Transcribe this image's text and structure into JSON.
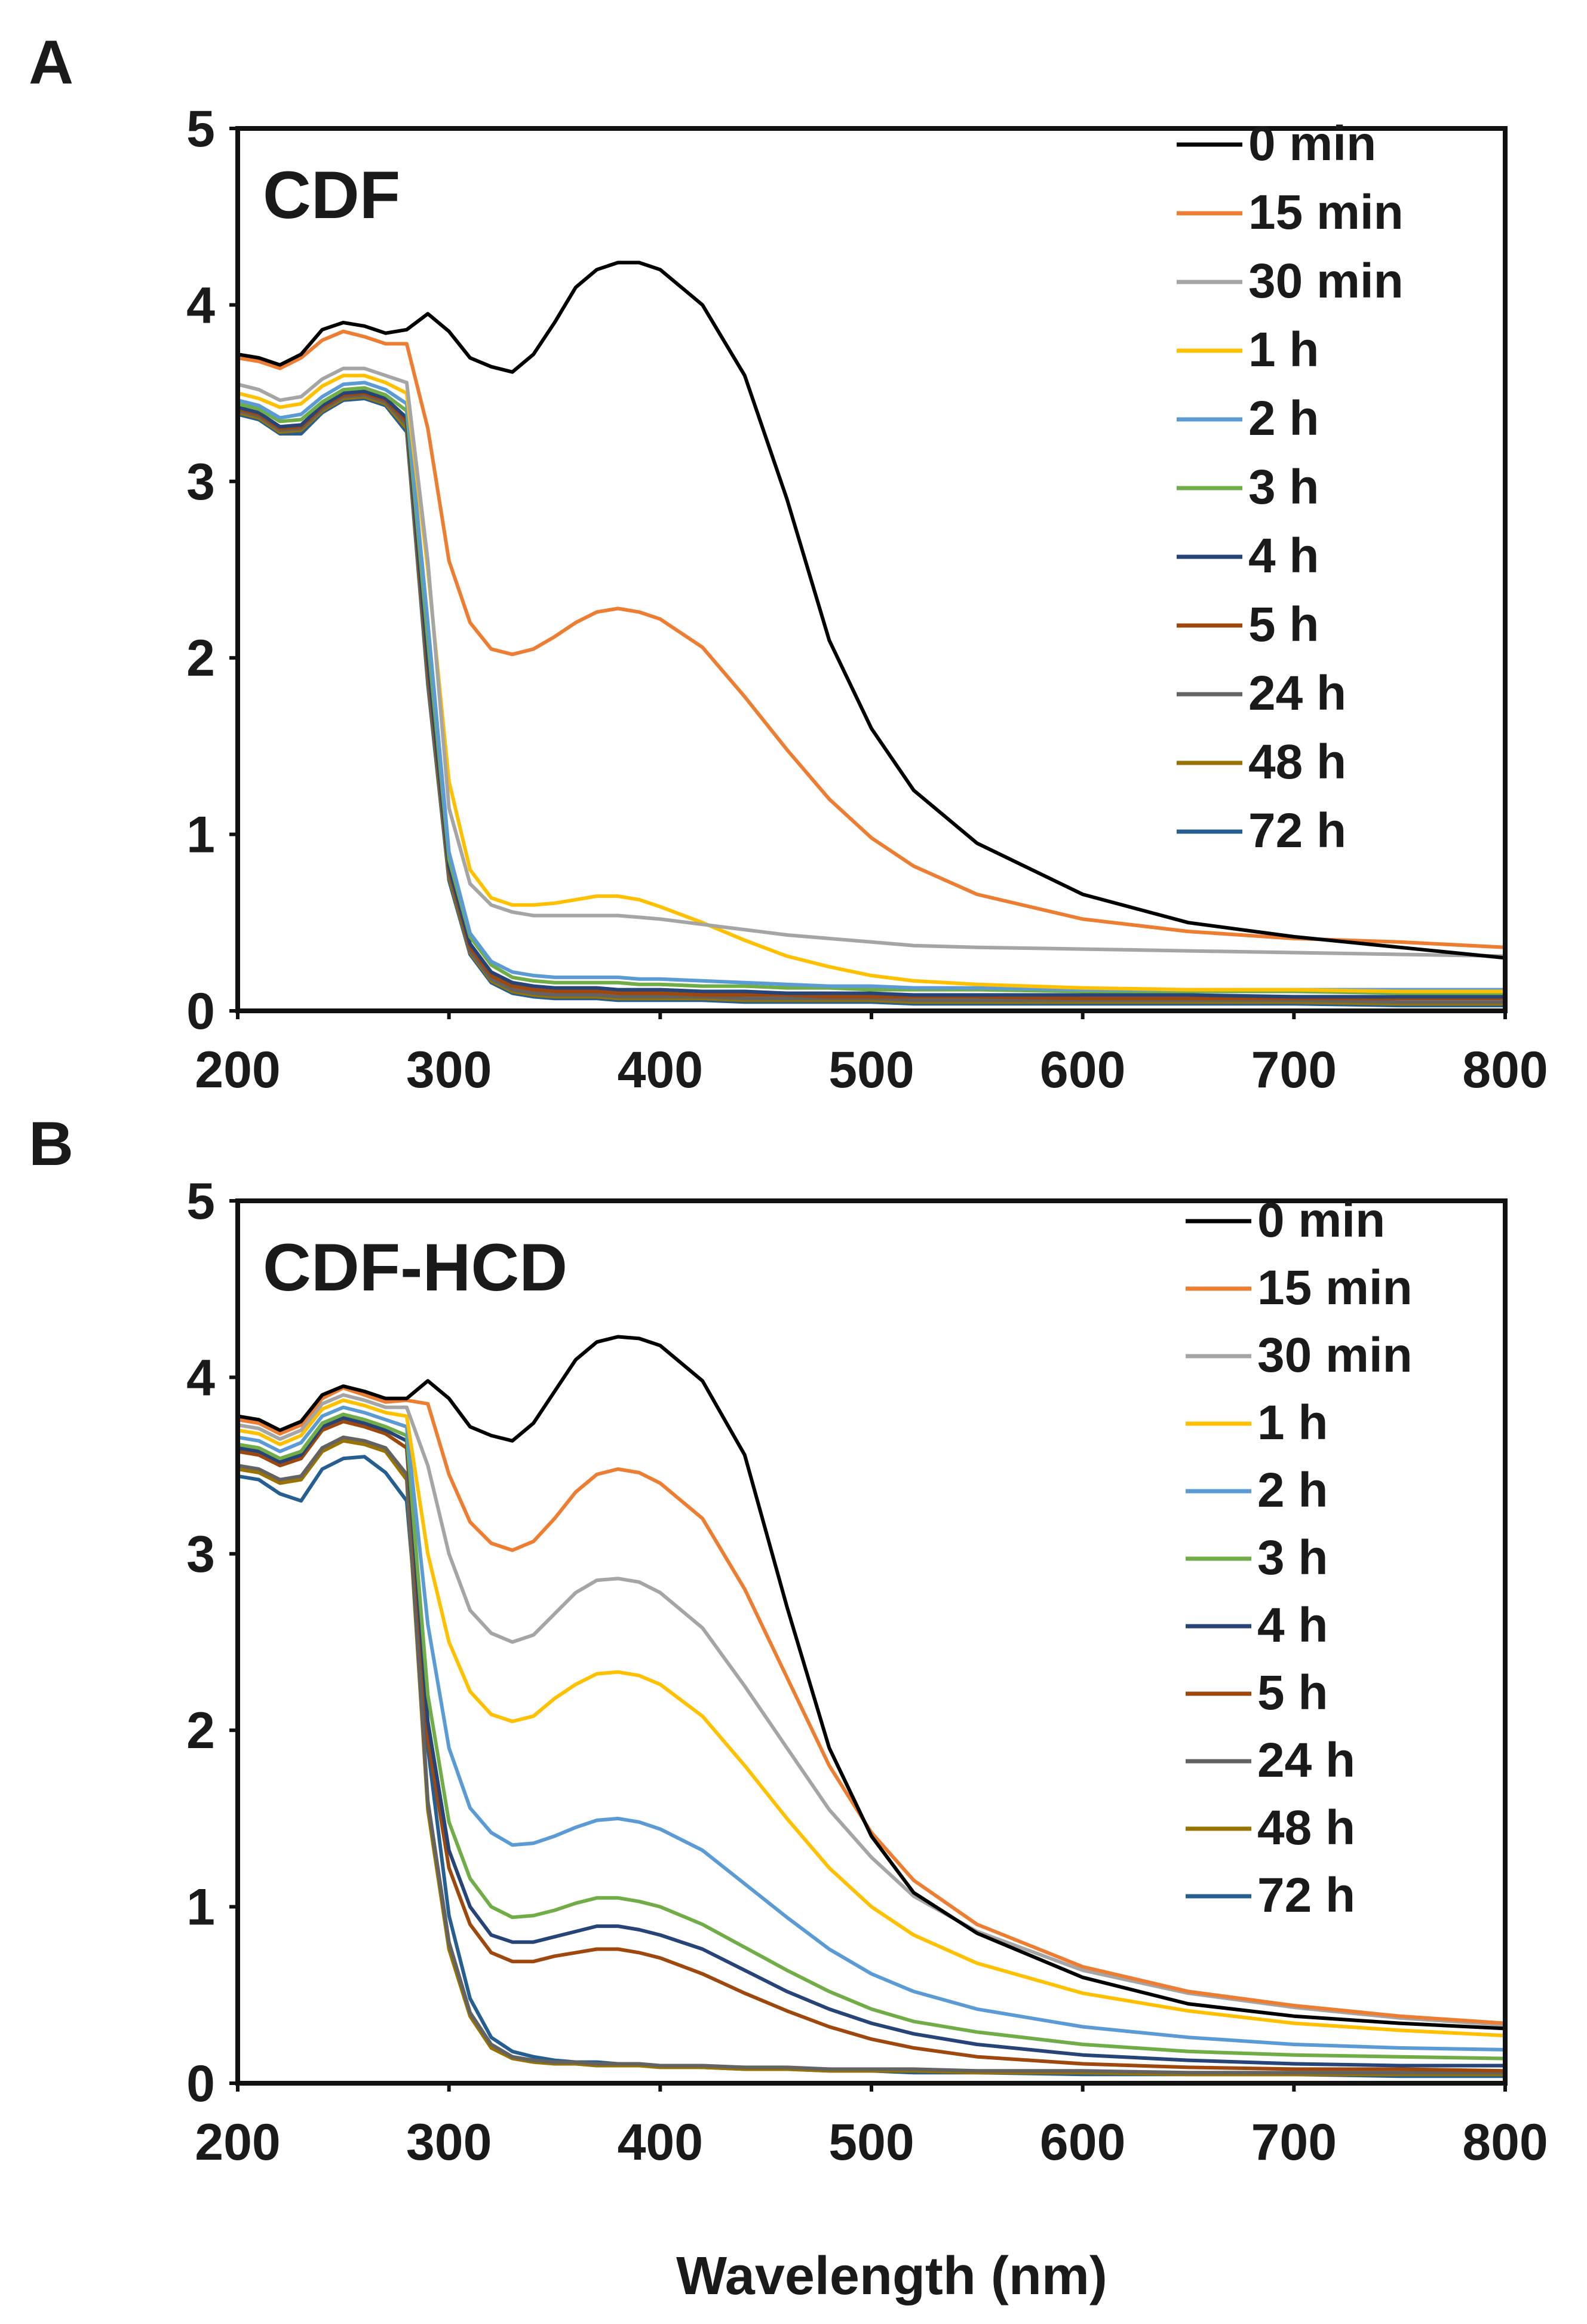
{
  "xlabel": "Wavelength (nm)",
  "chart_data": [
    {
      "type": "line",
      "panel": "A",
      "title": "CDF",
      "xlabel": "",
      "ylabel": "",
      "xlim": [
        200,
        800
      ],
      "ylim": [
        0,
        5
      ],
      "xticks": [
        "200",
        "300",
        "400",
        "500",
        "600",
        "700",
        "800"
      ],
      "yticks": [
        "0",
        "1",
        "2",
        "3",
        "4",
        "5"
      ],
      "x": [
        200,
        210,
        220,
        230,
        240,
        250,
        260,
        270,
        280,
        290,
        300,
        310,
        320,
        330,
        340,
        350,
        360,
        370,
        380,
        390,
        400,
        420,
        440,
        460,
        480,
        500,
        520,
        550,
        600,
        650,
        700,
        750,
        800
      ],
      "series": [
        {
          "name": "0 min",
          "color": "#000000",
          "values": [
            3.72,
            3.7,
            3.66,
            3.72,
            3.86,
            3.9,
            3.88,
            3.84,
            3.86,
            3.95,
            3.85,
            3.7,
            3.65,
            3.62,
            3.72,
            3.9,
            4.1,
            4.2,
            4.24,
            4.24,
            4.2,
            4.0,
            3.6,
            2.9,
            2.1,
            1.6,
            1.25,
            0.95,
            0.66,
            0.5,
            0.42,
            0.36,
            0.3
          ]
        },
        {
          "name": "15 min",
          "color": "#ED7D31",
          "values": [
            3.7,
            3.68,
            3.64,
            3.7,
            3.8,
            3.85,
            3.82,
            3.78,
            3.78,
            3.3,
            2.55,
            2.2,
            2.05,
            2.02,
            2.05,
            2.12,
            2.2,
            2.26,
            2.28,
            2.26,
            2.22,
            2.06,
            1.78,
            1.48,
            1.2,
            0.98,
            0.82,
            0.66,
            0.52,
            0.45,
            0.41,
            0.39,
            0.36
          ]
        },
        {
          "name": "30 min",
          "color": "#A5A5A5",
          "values": [
            3.55,
            3.52,
            3.46,
            3.48,
            3.58,
            3.64,
            3.64,
            3.6,
            3.56,
            2.55,
            1.15,
            0.72,
            0.6,
            0.56,
            0.54,
            0.54,
            0.54,
            0.54,
            0.54,
            0.53,
            0.52,
            0.49,
            0.46,
            0.43,
            0.41,
            0.39,
            0.37,
            0.36,
            0.35,
            0.34,
            0.33,
            0.32,
            0.31
          ]
        },
        {
          "name": "1 h",
          "color": "#FFC000",
          "values": [
            3.5,
            3.47,
            3.42,
            3.44,
            3.54,
            3.6,
            3.6,
            3.56,
            3.5,
            2.5,
            1.3,
            0.8,
            0.64,
            0.6,
            0.6,
            0.61,
            0.63,
            0.65,
            0.65,
            0.63,
            0.59,
            0.5,
            0.4,
            0.31,
            0.25,
            0.2,
            0.17,
            0.15,
            0.13,
            0.12,
            0.12,
            0.11,
            0.11
          ]
        },
        {
          "name": "2 h",
          "color": "#5B9BD5",
          "values": [
            3.46,
            3.43,
            3.36,
            3.38,
            3.48,
            3.55,
            3.56,
            3.52,
            3.44,
            2.2,
            0.9,
            0.44,
            0.28,
            0.22,
            0.2,
            0.19,
            0.19,
            0.19,
            0.19,
            0.18,
            0.18,
            0.17,
            0.16,
            0.15,
            0.14,
            0.14,
            0.13,
            0.13,
            0.12,
            0.12,
            0.12,
            0.12,
            0.12
          ]
        },
        {
          "name": "3 h",
          "color": "#70AD47",
          "values": [
            3.44,
            3.41,
            3.34,
            3.35,
            3.45,
            3.52,
            3.53,
            3.49,
            3.4,
            2.1,
            0.86,
            0.42,
            0.26,
            0.19,
            0.17,
            0.16,
            0.16,
            0.16,
            0.16,
            0.15,
            0.15,
            0.14,
            0.14,
            0.13,
            0.13,
            0.12,
            0.12,
            0.12,
            0.11,
            0.11,
            0.11,
            0.1,
            0.1
          ]
        },
        {
          "name": "4 h",
          "color": "#264478",
          "values": [
            3.42,
            3.39,
            3.31,
            3.32,
            3.43,
            3.5,
            3.51,
            3.47,
            3.36,
            2.0,
            0.82,
            0.38,
            0.22,
            0.16,
            0.14,
            0.13,
            0.13,
            0.13,
            0.12,
            0.12,
            0.12,
            0.11,
            0.11,
            0.1,
            0.1,
            0.1,
            0.09,
            0.09,
            0.09,
            0.09,
            0.08,
            0.08,
            0.08
          ]
        },
        {
          "name": "5 h",
          "color": "#9E480E",
          "values": [
            3.41,
            3.38,
            3.3,
            3.31,
            3.42,
            3.49,
            3.5,
            3.46,
            3.34,
            1.95,
            0.8,
            0.36,
            0.2,
            0.14,
            0.12,
            0.11,
            0.11,
            0.11,
            0.1,
            0.1,
            0.1,
            0.09,
            0.09,
            0.09,
            0.08,
            0.08,
            0.08,
            0.08,
            0.07,
            0.07,
            0.07,
            0.07,
            0.07
          ]
        },
        {
          "name": "24 h",
          "color": "#636363",
          "values": [
            3.4,
            3.37,
            3.29,
            3.3,
            3.41,
            3.48,
            3.49,
            3.45,
            3.32,
            1.9,
            0.78,
            0.34,
            0.18,
            0.12,
            0.1,
            0.09,
            0.09,
            0.09,
            0.08,
            0.08,
            0.08,
            0.08,
            0.07,
            0.07,
            0.07,
            0.07,
            0.06,
            0.06,
            0.06,
            0.06,
            0.06,
            0.05,
            0.05
          ]
        },
        {
          "name": "48 h",
          "color": "#997300",
          "values": [
            3.39,
            3.36,
            3.28,
            3.29,
            3.4,
            3.47,
            3.48,
            3.44,
            3.3,
            1.88,
            0.76,
            0.33,
            0.17,
            0.11,
            0.09,
            0.08,
            0.08,
            0.08,
            0.07,
            0.07,
            0.07,
            0.07,
            0.06,
            0.06,
            0.06,
            0.06,
            0.05,
            0.05,
            0.05,
            0.05,
            0.05,
            0.04,
            0.04
          ]
        },
        {
          "name": "72 h",
          "color": "#255E91",
          "values": [
            3.38,
            3.35,
            3.27,
            3.27,
            3.39,
            3.46,
            3.47,
            3.43,
            3.28,
            1.85,
            0.74,
            0.32,
            0.16,
            0.1,
            0.08,
            0.07,
            0.07,
            0.07,
            0.06,
            0.06,
            0.06,
            0.06,
            0.05,
            0.05,
            0.05,
            0.05,
            0.04,
            0.04,
            0.04,
            0.04,
            0.04,
            0.03,
            0.03
          ]
        }
      ]
    },
    {
      "type": "line",
      "panel": "B",
      "title": "CDF-HCD",
      "xlabel": "Wavelength (nm)",
      "ylabel": "",
      "xlim": [
        200,
        800
      ],
      "ylim": [
        0,
        5
      ],
      "xticks": [
        "200",
        "300",
        "400",
        "500",
        "600",
        "700",
        "800"
      ],
      "yticks": [
        "0",
        "1",
        "2",
        "3",
        "4",
        "5"
      ],
      "x": [
        200,
        210,
        220,
        230,
        240,
        250,
        260,
        270,
        280,
        290,
        300,
        310,
        320,
        330,
        340,
        350,
        360,
        370,
        380,
        390,
        400,
        420,
        440,
        460,
        480,
        500,
        520,
        550,
        600,
        650,
        700,
        750,
        800
      ],
      "series": [
        {
          "name": "0 min",
          "color": "#000000",
          "values": [
            3.78,
            3.76,
            3.7,
            3.75,
            3.9,
            3.95,
            3.92,
            3.88,
            3.88,
            3.98,
            3.88,
            3.72,
            3.67,
            3.64,
            3.74,
            3.92,
            4.1,
            4.2,
            4.23,
            4.22,
            4.18,
            3.98,
            3.56,
            2.7,
            1.9,
            1.4,
            1.08,
            0.85,
            0.6,
            0.45,
            0.38,
            0.34,
            0.31
          ]
        },
        {
          "name": "15 min",
          "color": "#ED7D31",
          "values": [
            3.76,
            3.74,
            3.68,
            3.73,
            3.88,
            3.94,
            3.9,
            3.86,
            3.87,
            3.85,
            3.45,
            3.18,
            3.06,
            3.02,
            3.07,
            3.2,
            3.35,
            3.45,
            3.48,
            3.46,
            3.4,
            3.2,
            2.8,
            2.3,
            1.8,
            1.42,
            1.15,
            0.9,
            0.66,
            0.52,
            0.44,
            0.38,
            0.34
          ]
        },
        {
          "name": "30 min",
          "color": "#A5A5A5",
          "values": [
            3.73,
            3.71,
            3.65,
            3.7,
            3.85,
            3.9,
            3.87,
            3.83,
            3.83,
            3.5,
            3.0,
            2.68,
            2.55,
            2.5,
            2.54,
            2.66,
            2.78,
            2.85,
            2.86,
            2.84,
            2.78,
            2.58,
            2.25,
            1.9,
            1.55,
            1.28,
            1.06,
            0.86,
            0.64,
            0.51,
            0.43,
            0.37,
            0.33
          ]
        },
        {
          "name": "1 h",
          "color": "#FFC000",
          "values": [
            3.7,
            3.68,
            3.62,
            3.67,
            3.82,
            3.87,
            3.84,
            3.8,
            3.78,
            3.0,
            2.5,
            2.22,
            2.09,
            2.05,
            2.08,
            2.18,
            2.26,
            2.32,
            2.33,
            2.31,
            2.26,
            2.08,
            1.8,
            1.5,
            1.22,
            1.0,
            0.84,
            0.68,
            0.51,
            0.41,
            0.34,
            0.3,
            0.27
          ]
        },
        {
          "name": "2 h",
          "color": "#5B9BD5",
          "values": [
            3.66,
            3.64,
            3.58,
            3.63,
            3.78,
            3.83,
            3.8,
            3.76,
            3.72,
            2.6,
            1.9,
            1.56,
            1.42,
            1.35,
            1.36,
            1.4,
            1.45,
            1.49,
            1.5,
            1.48,
            1.44,
            1.32,
            1.13,
            0.94,
            0.76,
            0.62,
            0.52,
            0.42,
            0.32,
            0.26,
            0.22,
            0.2,
            0.19
          ]
        },
        {
          "name": "3 h",
          "color": "#70AD47",
          "values": [
            3.62,
            3.6,
            3.54,
            3.58,
            3.74,
            3.79,
            3.76,
            3.72,
            3.67,
            2.2,
            1.48,
            1.16,
            1.0,
            0.94,
            0.95,
            0.98,
            1.02,
            1.05,
            1.05,
            1.03,
            1.0,
            0.9,
            0.77,
            0.64,
            0.52,
            0.42,
            0.35,
            0.29,
            0.22,
            0.18,
            0.16,
            0.15,
            0.14
          ]
        },
        {
          "name": "4 h",
          "color": "#264478",
          "values": [
            3.6,
            3.58,
            3.52,
            3.56,
            3.72,
            3.77,
            3.74,
            3.7,
            3.64,
            2.05,
            1.32,
            1.0,
            0.84,
            0.8,
            0.8,
            0.83,
            0.86,
            0.89,
            0.89,
            0.87,
            0.84,
            0.76,
            0.64,
            0.52,
            0.42,
            0.34,
            0.28,
            0.22,
            0.16,
            0.13,
            0.11,
            0.1,
            0.1
          ]
        },
        {
          "name": "5 h",
          "color": "#9E480E",
          "values": [
            3.58,
            3.56,
            3.5,
            3.54,
            3.7,
            3.75,
            3.72,
            3.68,
            3.6,
            1.95,
            1.22,
            0.9,
            0.74,
            0.69,
            0.69,
            0.72,
            0.74,
            0.76,
            0.76,
            0.74,
            0.71,
            0.62,
            0.51,
            0.41,
            0.32,
            0.25,
            0.2,
            0.15,
            0.11,
            0.09,
            0.08,
            0.08,
            0.07
          ]
        },
        {
          "name": "24 h",
          "color": "#636363",
          "values": [
            3.5,
            3.48,
            3.42,
            3.44,
            3.6,
            3.66,
            3.64,
            3.6,
            3.45,
            1.6,
            0.8,
            0.4,
            0.22,
            0.15,
            0.13,
            0.12,
            0.12,
            0.11,
            0.11,
            0.11,
            0.1,
            0.1,
            0.09,
            0.09,
            0.08,
            0.08,
            0.08,
            0.07,
            0.07,
            0.06,
            0.06,
            0.06,
            0.06
          ]
        },
        {
          "name": "48 h",
          "color": "#997300",
          "values": [
            3.48,
            3.46,
            3.4,
            3.42,
            3.58,
            3.64,
            3.62,
            3.58,
            3.42,
            1.55,
            0.76,
            0.38,
            0.2,
            0.14,
            0.12,
            0.11,
            0.11,
            0.1,
            0.1,
            0.1,
            0.09,
            0.09,
            0.08,
            0.08,
            0.07,
            0.07,
            0.07,
            0.06,
            0.06,
            0.05,
            0.05,
            0.05,
            0.05
          ]
        },
        {
          "name": "72 h",
          "color": "#255E91",
          "values": [
            3.44,
            3.42,
            3.34,
            3.3,
            3.48,
            3.54,
            3.55,
            3.46,
            3.3,
            1.9,
            0.95,
            0.48,
            0.26,
            0.18,
            0.15,
            0.13,
            0.12,
            0.12,
            0.11,
            0.1,
            0.1,
            0.09,
            0.08,
            0.08,
            0.07,
            0.07,
            0.06,
            0.06,
            0.05,
            0.05,
            0.05,
            0.04,
            0.04
          ]
        }
      ]
    }
  ]
}
